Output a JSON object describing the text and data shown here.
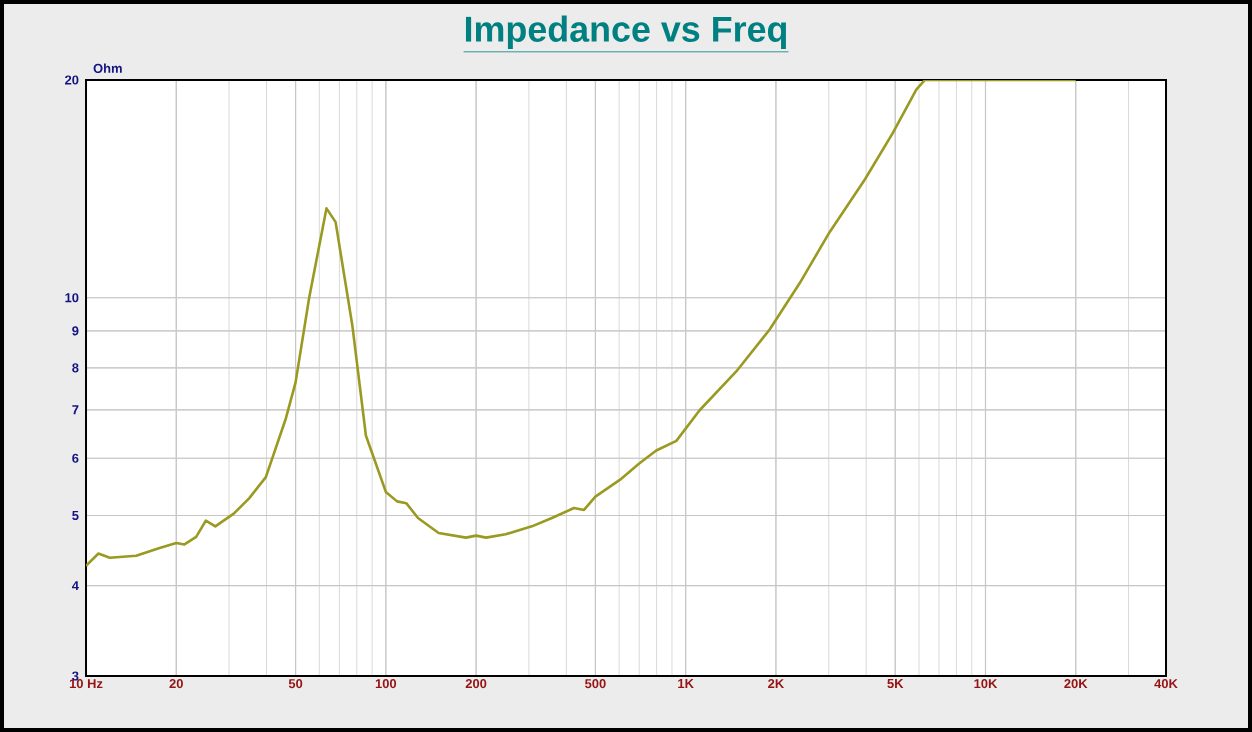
{
  "chart_data": {
    "type": "line",
    "title": "Impedance vs Freq",
    "ylabel": "Ohm",
    "x": [
      10,
      11,
      12,
      14.7,
      17.6,
      20,
      21.3,
      23.3,
      25.1,
      27,
      31.1,
      35,
      39.8,
      46.4,
      50,
      55.5,
      63.4,
      68,
      77.4,
      85.8,
      100,
      109,
      117,
      128,
      150,
      185,
      200,
      216,
      251,
      307,
      358,
      424,
      458,
      500,
      603,
      700,
      798,
      931,
      1113,
      1475,
      1906,
      2399,
      3020,
      3964,
      4910,
      5878,
      6278,
      20000
    ],
    "series": [
      {
        "color": "#9a9a22",
        "values": [
          4.26,
          4.43,
          4.37,
          4.4,
          4.51,
          4.58,
          4.56,
          4.67,
          4.92,
          4.83,
          5.03,
          5.28,
          5.65,
          6.81,
          7.64,
          10,
          13.29,
          12.72,
          9.13,
          6.45,
          5.39,
          5.23,
          5.2,
          4.96,
          4.73,
          4.66,
          4.69,
          4.66,
          4.71,
          4.83,
          4.96,
          5.12,
          5.09,
          5.31,
          5.6,
          5.9,
          6.15,
          6.34,
          6.99,
          7.91,
          9.04,
          10.47,
          12.32,
          14.58,
          16.9,
          19.4,
          20,
          20
        ]
      }
    ],
    "log": "xy",
    "xlim": [
      10,
      40000
    ],
    "ylim": [
      3,
      20
    ],
    "xticks": [
      {
        "value": 10,
        "label": "10 Hz"
      },
      20,
      50,
      100,
      200,
      500,
      {
        "value": 1000,
        "label": "1K"
      },
      {
        "value": 2000,
        "label": "2K"
      },
      {
        "value": 5000,
        "label": "5K"
      },
      {
        "value": 10000,
        "label": "10K"
      },
      {
        "value": 20000,
        "label": "20K"
      },
      {
        "value": 40000,
        "label": "40K"
      }
    ],
    "yticks": [
      3,
      4,
      5,
      6,
      7,
      8,
      9,
      10,
      20
    ],
    "grid": true,
    "marker": "none",
    "line_style": "solid"
  }
}
